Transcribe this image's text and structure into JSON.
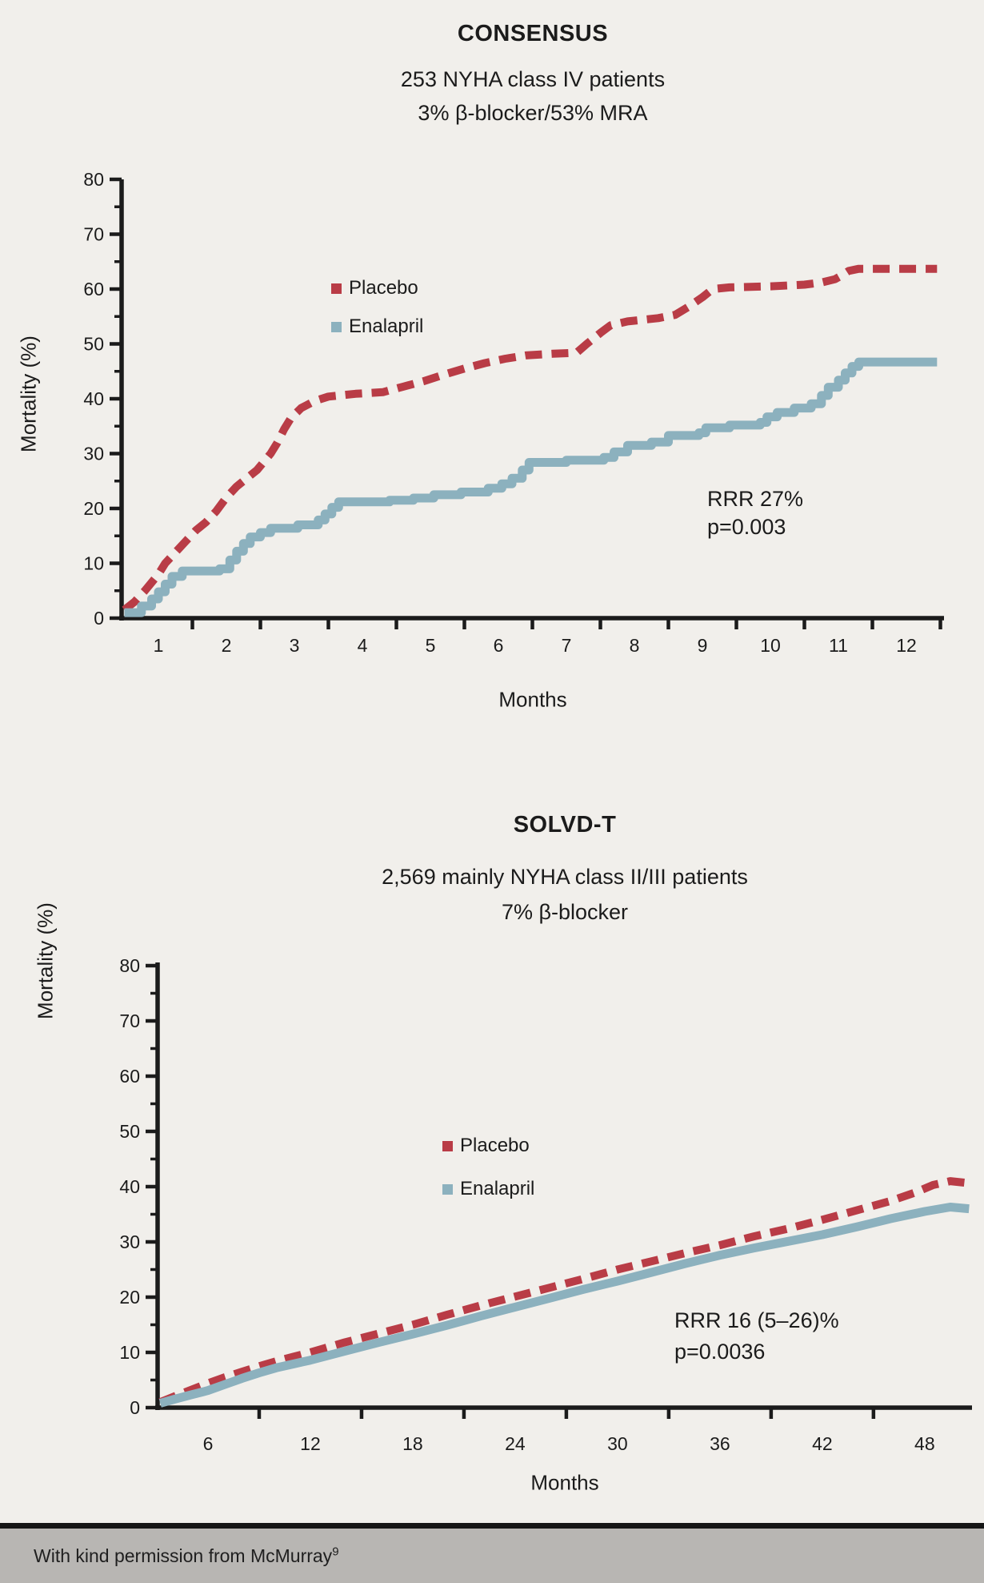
{
  "colors": {
    "background": "#f1efeb",
    "placebo": "#b93c46",
    "enalapril": "#8cb1be",
    "axis": "#1b1b1b",
    "footer_bar": "#b8b6b3",
    "footer_rule": "#161616"
  },
  "footer": {
    "text": "With kind permission from McMurray",
    "superscript": "9"
  },
  "chart_data": [
    {
      "type": "line",
      "title": "CONSENSUS",
      "subtitle_lines": [
        "253 NYHA class IV patients",
        "3% β-blocker/53% MRA"
      ],
      "ylabel": "Mortality (%)",
      "xlabel": "Months",
      "ylim": [
        0,
        80
      ],
      "xlim": [
        0.45,
        12.55
      ],
      "y_tick_labels": [
        0,
        10,
        20,
        30,
        40,
        50,
        60,
        70,
        80
      ],
      "y_minor_ticks": [
        5,
        15,
        25,
        35,
        45,
        55,
        65,
        75
      ],
      "x_tick_labels": [
        1,
        2,
        3,
        4,
        5,
        6,
        7,
        8,
        9,
        10,
        11,
        12
      ],
      "x_tick_marks": [
        1.5,
        2.5,
        3.5,
        4.5,
        5.5,
        6.5,
        7.5,
        8.5,
        9.5,
        10.5,
        11.5,
        12.5
      ],
      "grid": false,
      "legend_position": "upper-left-inside",
      "annotation": [
        "RRR 27%",
        "p=0.003"
      ],
      "series": [
        {
          "name": "Placebo",
          "color": "#b93c46",
          "line_style": "dashed",
          "interpolation": "linear",
          "points": [
            [
              0.5,
              1.5
            ],
            [
              0.65,
              3
            ],
            [
              0.8,
              5
            ],
            [
              1.0,
              8
            ],
            [
              1.1,
              10
            ],
            [
              1.25,
              12
            ],
            [
              1.4,
              14
            ],
            [
              1.55,
              16
            ],
            [
              1.7,
              17.5
            ],
            [
              1.85,
              19.5
            ],
            [
              2.0,
              22
            ],
            [
              2.15,
              24
            ],
            [
              2.3,
              25.5
            ],
            [
              2.45,
              27
            ],
            [
              2.55,
              28.5
            ],
            [
              2.65,
              30
            ],
            [
              2.75,
              32
            ],
            [
              2.85,
              34.5
            ],
            [
              2.95,
              36.5
            ],
            [
              3.1,
              38.3
            ],
            [
              3.3,
              39.6
            ],
            [
              3.5,
              40.4
            ],
            [
              3.9,
              40.9
            ],
            [
              4.3,
              41.2
            ],
            [
              4.6,
              42.2
            ],
            [
              4.9,
              43.2
            ],
            [
              5.2,
              44.4
            ],
            [
              5.5,
              45.5
            ],
            [
              5.8,
              46.5
            ],
            [
              6.1,
              47.3
            ],
            [
              6.4,
              47.9
            ],
            [
              6.8,
              48.2
            ],
            [
              7.15,
              48.4
            ],
            [
              7.3,
              50
            ],
            [
              7.5,
              52
            ],
            [
              7.65,
              53.4
            ],
            [
              7.9,
              54.1
            ],
            [
              8.35,
              54.7
            ],
            [
              8.6,
              55.3
            ],
            [
              8.8,
              56.8
            ],
            [
              9.0,
              58.5
            ],
            [
              9.15,
              60
            ],
            [
              9.4,
              60.3
            ],
            [
              10.0,
              60.5
            ],
            [
              10.5,
              60.8
            ],
            [
              10.75,
              61.2
            ],
            [
              10.95,
              61.8
            ],
            [
              11.05,
              62.5
            ],
            [
              11.15,
              63.3
            ],
            [
              11.3,
              63.7
            ],
            [
              12.45,
              63.7
            ]
          ]
        },
        {
          "name": "Enalapril",
          "color": "#8cb1be",
          "line_style": "solid",
          "interpolation": "step",
          "points": [
            [
              0.5,
              1
            ],
            [
              0.75,
              2.2
            ],
            [
              0.9,
              3.5
            ],
            [
              1.0,
              4.8
            ],
            [
              1.1,
              6.2
            ],
            [
              1.2,
              7.6
            ],
            [
              1.35,
              8.6
            ],
            [
              1.9,
              9
            ],
            [
              2.05,
              10.6
            ],
            [
              2.15,
              12.2
            ],
            [
              2.25,
              13.6
            ],
            [
              2.35,
              14.8
            ],
            [
              2.5,
              15.6
            ],
            [
              2.65,
              16.4
            ],
            [
              3.05,
              17
            ],
            [
              3.35,
              17.9
            ],
            [
              3.45,
              19
            ],
            [
              3.55,
              20.2
            ],
            [
              3.65,
              21.2
            ],
            [
              4.4,
              21.5
            ],
            [
              4.75,
              21.9
            ],
            [
              5.05,
              22.5
            ],
            [
              5.45,
              23
            ],
            [
              5.85,
              23.7
            ],
            [
              6.05,
              24.5
            ],
            [
              6.2,
              25.5
            ],
            [
              6.35,
              27
            ],
            [
              6.45,
              28.4
            ],
            [
              7.0,
              28.8
            ],
            [
              7.55,
              29.3
            ],
            [
              7.7,
              30.3
            ],
            [
              7.9,
              31.5
            ],
            [
              8.25,
              32.1
            ],
            [
              8.5,
              33.3
            ],
            [
              8.95,
              33.8
            ],
            [
              9.05,
              34.7
            ],
            [
              9.4,
              35.2
            ],
            [
              9.85,
              35.7
            ],
            [
              9.95,
              36.7
            ],
            [
              10.1,
              37.5
            ],
            [
              10.35,
              38.3
            ],
            [
              10.6,
              39.1
            ],
            [
              10.75,
              40.6
            ],
            [
              10.85,
              42.1
            ],
            [
              11.0,
              43.4
            ],
            [
              11.1,
              44.7
            ],
            [
              11.2,
              45.9
            ],
            [
              11.3,
              46.7
            ],
            [
              12.45,
              46.7
            ]
          ]
        }
      ]
    },
    {
      "type": "line",
      "title": "SOLVD-T",
      "subtitle_lines": [
        "2,569 mainly NYHA class II/III patients",
        "7% β-blocker"
      ],
      "ylabel": "Mortality (%)",
      "xlabel": "Months",
      "ylim": [
        0,
        80
      ],
      "xlim": [
        3,
        50.8
      ],
      "y_tick_labels": [
        0,
        10,
        20,
        30,
        40,
        50,
        60,
        70,
        80
      ],
      "y_minor_ticks": [
        5,
        15,
        25,
        35,
        45,
        55,
        65,
        75
      ],
      "x_tick_labels": [
        6,
        12,
        18,
        24,
        30,
        36,
        42,
        48
      ],
      "x_tick_marks": [
        9,
        15,
        21,
        27,
        33,
        39,
        45
      ],
      "grid": false,
      "legend_position": "upper-middle-inside",
      "annotation": [
        "RRR 16 (5–26)%",
        "p=0.0036"
      ],
      "series": [
        {
          "name": "Placebo",
          "color": "#b93c46",
          "line_style": "dashed",
          "interpolation": "linear",
          "points": [
            [
              3.2,
              1
            ],
            [
              4,
              2
            ],
            [
              5,
              3.2
            ],
            [
              6,
              4.4
            ],
            [
              7,
              5.5
            ],
            [
              8,
              6.5
            ],
            [
              9,
              7.5
            ],
            [
              10,
              8.4
            ],
            [
              11,
              9.2
            ],
            [
              12,
              10
            ],
            [
              14,
              11.8
            ],
            [
              16,
              13.4
            ],
            [
              18,
              15
            ],
            [
              20,
              16.8
            ],
            [
              22,
              18.5
            ],
            [
              24,
              20.1
            ],
            [
              26,
              21.7
            ],
            [
              28,
              23.3
            ],
            [
              30,
              25
            ],
            [
              32,
              26.5
            ],
            [
              34,
              28
            ],
            [
              36,
              29.4
            ],
            [
              38,
              31
            ],
            [
              40,
              32.4
            ],
            [
              42,
              34
            ],
            [
              44,
              35.7
            ],
            [
              46,
              37.4
            ],
            [
              47.5,
              39
            ],
            [
              48.5,
              40.3
            ],
            [
              49.5,
              41
            ],
            [
              50.4,
              40.7
            ]
          ]
        },
        {
          "name": "Enalapril",
          "color": "#8cb1be",
          "line_style": "solid",
          "interpolation": "linear",
          "points": [
            [
              3.2,
              0.8
            ],
            [
              4,
              1.5
            ],
            [
              5,
              2.3
            ],
            [
              6,
              3.1
            ],
            [
              7,
              4.2
            ],
            [
              8,
              5.3
            ],
            [
              9,
              6.3
            ],
            [
              10,
              7.2
            ],
            [
              11,
              7.9
            ],
            [
              12,
              8.6
            ],
            [
              14,
              10.2
            ],
            [
              16,
              11.8
            ],
            [
              18,
              13.3
            ],
            [
              20,
              14.9
            ],
            [
              22,
              16.6
            ],
            [
              24,
              18.2
            ],
            [
              26,
              19.8
            ],
            [
              28,
              21.4
            ],
            [
              30,
              22.9
            ],
            [
              32,
              24.5
            ],
            [
              34,
              26.1
            ],
            [
              36,
              27.6
            ],
            [
              38,
              28.9
            ],
            [
              40,
              30.1
            ],
            [
              42,
              31.3
            ],
            [
              44,
              32.7
            ],
            [
              46,
              34.2
            ],
            [
              48,
              35.5
            ],
            [
              49.5,
              36.3
            ],
            [
              50.6,
              36
            ]
          ]
        }
      ]
    }
  ]
}
